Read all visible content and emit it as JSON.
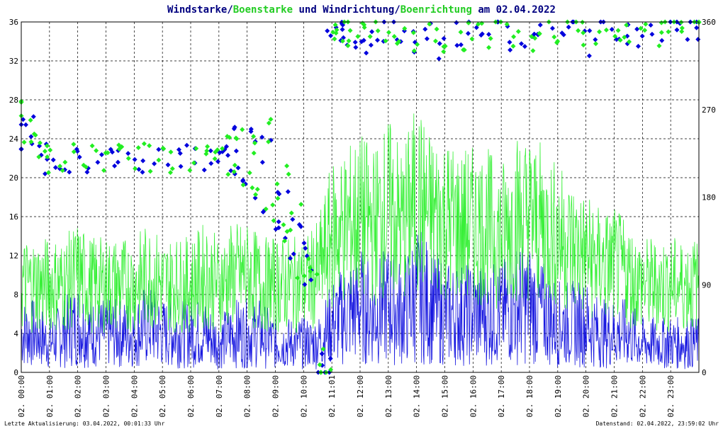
{
  "title": {
    "part1": "Windstarke",
    "sep1": "/",
    "part2": "Boenstarke",
    "mid": " und ",
    "part3": "Windrichtung",
    "sep2": "/",
    "part4": "Boenrichtung",
    "tail": " am 02.04.2022"
  },
  "footer": {
    "left": "Letzte Aktualisierung: 03.04.2022, 00:01:33 Uhr",
    "right": "Datenstand: 02.04.2022, 23:59:02 Uhr"
  },
  "colors": {
    "wind": "#0000dd",
    "gust": "#22ee22",
    "title_dark": "#000080",
    "grid": "#000000",
    "midnight_marker": "#dd0000"
  },
  "chart_data": {
    "type": "line",
    "x_unit": "hour",
    "x_range": [
      0,
      24
    ],
    "x_tick_labels": [
      "02. 00:00",
      "02. 01:00",
      "02. 02:00",
      "02. 03:00",
      "02. 04:00",
      "02. 05:00",
      "02. 06:00",
      "02. 07:00",
      "02. 08:00",
      "02. 09:00",
      "02. 10:00",
      "02. 11:01",
      "02. 12:00",
      "02. 13:00",
      "02. 14:00",
      "02. 15:00",
      "02. 16:00",
      "02. 17:00",
      "02. 18:00",
      "02. 19:00",
      "02. 20:00",
      "02. 21:00",
      "02. 22:00",
      "02. 23:00"
    ],
    "y_left": {
      "ticks": [
        0,
        4,
        8,
        12,
        16,
        20,
        24,
        28,
        32,
        36
      ],
      "range": [
        0,
        36
      ]
    },
    "y_right": {
      "ticks": [
        0,
        90,
        180,
        270,
        360
      ],
      "range": [
        0,
        360
      ]
    },
    "grid": true,
    "series": [
      {
        "name": "Windstarke",
        "color": "#0000dd",
        "style": "line",
        "x": [
          0,
          0.5,
          1,
          1.5,
          2,
          2.5,
          3,
          3.5,
          4,
          4.5,
          5,
          5.5,
          6,
          6.5,
          7,
          7.5,
          8,
          8.5,
          9,
          9.5,
          10,
          10.5,
          11,
          11.5,
          12,
          12.5,
          13,
          13.5,
          14,
          14.5,
          15,
          15.5,
          16,
          16.5,
          17,
          17.5,
          18,
          18.5,
          19,
          19.5,
          20,
          20.5,
          21,
          21.5,
          22,
          22.5,
          23,
          23.5,
          24
        ],
        "y": [
          4,
          4,
          3,
          4,
          5,
          4,
          4,
          4,
          4,
          5,
          4,
          4,
          4,
          4,
          3,
          4,
          4,
          4,
          3,
          3,
          3,
          3,
          5,
          6,
          7,
          6,
          7,
          6,
          8,
          7,
          6,
          6,
          6,
          6,
          6,
          7,
          7,
          6,
          5,
          5,
          5,
          4,
          4,
          4,
          3,
          3,
          3,
          3,
          3
        ]
      },
      {
        "name": "Boenstarke",
        "color": "#22ee22",
        "style": "line",
        "x": [
          0,
          0.5,
          1,
          1.5,
          2,
          2.5,
          3,
          3.5,
          4,
          4.5,
          5,
          5.5,
          6,
          6.5,
          7,
          7.5,
          8,
          8.5,
          9,
          9.5,
          10,
          10.5,
          11,
          11.5,
          12,
          12.5,
          13,
          13.5,
          14,
          14.5,
          15,
          15.5,
          16,
          16.5,
          17,
          17.5,
          18,
          18.5,
          19,
          19.5,
          20,
          20.5,
          21,
          21.5,
          22,
          22.5,
          23,
          23.5,
          24
        ],
        "y": [
          9,
          9,
          9,
          9,
          10,
          9,
          9,
          9,
          9,
          10,
          9,
          9,
          9,
          10,
          9,
          10,
          10,
          9,
          9,
          9,
          9,
          10,
          14,
          15,
          16,
          15,
          17,
          15,
          18,
          16,
          16,
          15,
          15,
          15,
          14,
          16,
          16,
          15,
          14,
          13,
          12,
          11,
          11,
          10,
          9,
          9,
          9,
          9,
          9
        ]
      },
      {
        "name": "Windrichtung",
        "color": "#0000dd",
        "style": "markers",
        "x": [
          0,
          0.25,
          0.5,
          0.75,
          1,
          1.5,
          2,
          2.5,
          3,
          3.5,
          4,
          4.5,
          5,
          5.5,
          6,
          6.5,
          7,
          7.25,
          7.5,
          7.75,
          8,
          8.25,
          8.5,
          8.75,
          9,
          9.25,
          9.5,
          9.75,
          10,
          10.25,
          10.5,
          10.75,
          11,
          11.25,
          11.5,
          11.75,
          12,
          12.5,
          13,
          13.5,
          14,
          14.5,
          15,
          15.5,
          16,
          16.5,
          17,
          17.5,
          18,
          18.5,
          19,
          19.5,
          20,
          20.5,
          21,
          21.5,
          22,
          22.5,
          23,
          23.5,
          24
        ],
        "y": [
          240,
          260,
          240,
          225,
          210,
          220,
          225,
          220,
          220,
          220,
          220,
          220,
          220,
          220,
          220,
          220,
          220,
          230,
          200,
          240,
          190,
          250,
          170,
          230,
          160,
          180,
          130,
          150,
          120,
          100,
          5,
          5,
          355,
          350,
          350,
          345,
          340,
          345,
          350,
          345,
          340,
          345,
          335,
          345,
          350,
          340,
          355,
          345,
          340,
          350,
          345,
          355,
          340,
          350,
          350,
          345,
          350,
          345,
          350,
          355,
          355
        ]
      },
      {
        "name": "Boenrichtung",
        "color": "#22ee22",
        "style": "markers",
        "x": [
          0,
          0.25,
          0.5,
          0.75,
          1,
          1.5,
          2,
          2.5,
          3,
          3.5,
          4,
          4.5,
          5,
          5.5,
          6,
          6.5,
          7,
          7.25,
          7.5,
          7.75,
          8,
          8.25,
          8.5,
          8.75,
          9,
          9.25,
          9.5,
          9.75,
          10,
          10.25,
          10.5,
          10.75,
          11,
          11.25,
          11.5,
          11.75,
          12,
          12.5,
          13,
          13.5,
          14,
          14.5,
          15,
          15.5,
          16,
          16.5,
          17,
          17.5,
          18,
          18.5,
          19,
          19.5,
          20,
          20.5,
          21,
          21.5,
          22,
          22.5,
          23,
          23.5,
          24
        ],
        "y": [
          270,
          250,
          230,
          220,
          215,
          220,
          220,
          220,
          220,
          220,
          220,
          220,
          220,
          220,
          220,
          220,
          220,
          240,
          210,
          250,
          200,
          240,
          180,
          250,
          170,
          200,
          140,
          160,
          110,
          100,
          10,
          5,
          355,
          350,
          345,
          350,
          345,
          350,
          345,
          350,
          345,
          350,
          340,
          345,
          355,
          345,
          355,
          350,
          345,
          350,
          345,
          355,
          345,
          350,
          350,
          345,
          350,
          345,
          350,
          355,
          355
        ]
      }
    ]
  }
}
